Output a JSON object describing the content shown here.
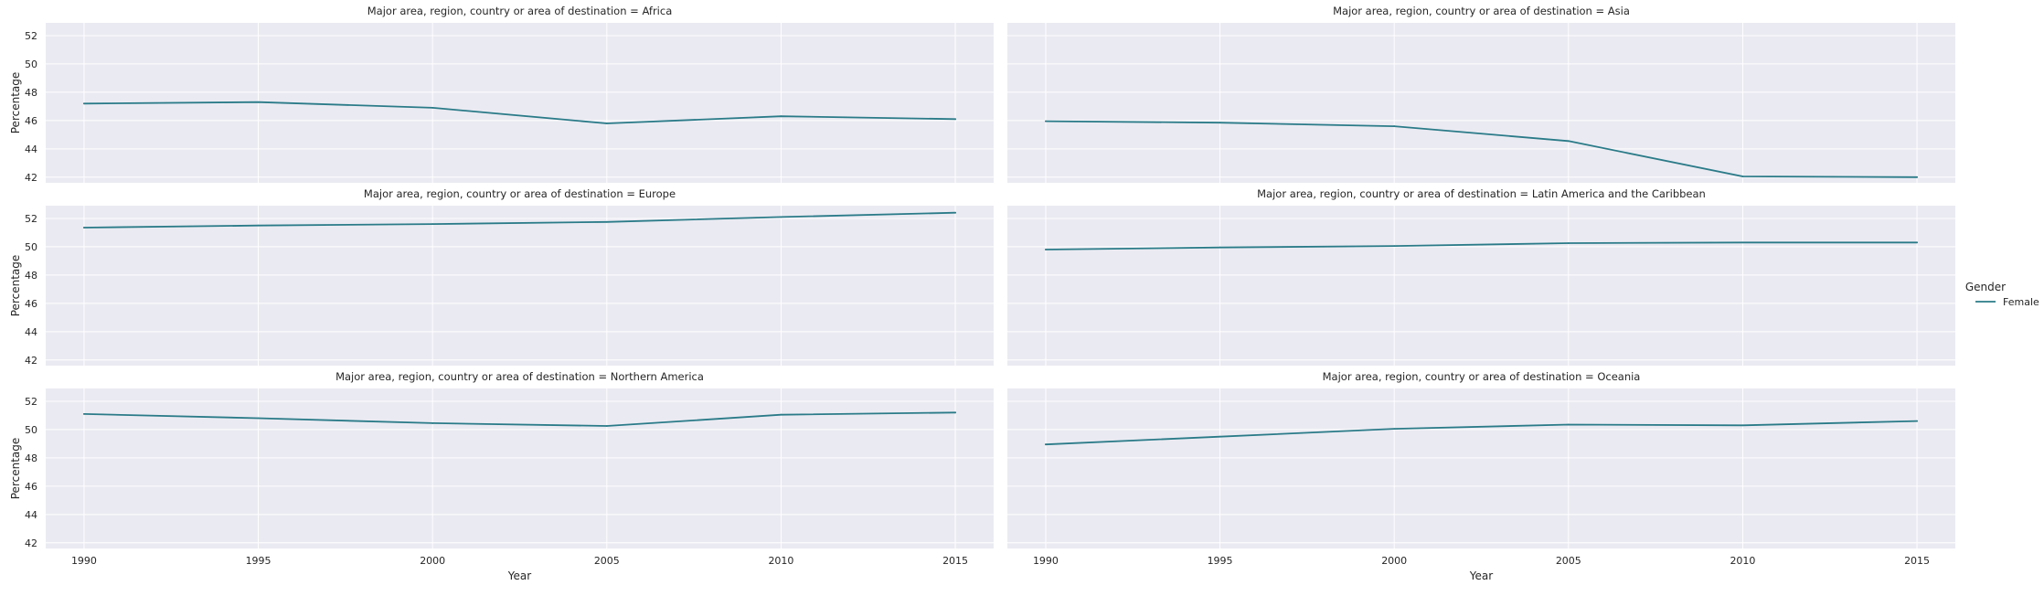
{
  "chart_data": {
    "type": "line",
    "layout": "facet-grid-3x2",
    "xlabel": "Year",
    "ylabel": "Percentage",
    "x_ticks": [
      1990,
      1995,
      2000,
      2005,
      2010,
      2015
    ],
    "xlim": [
      1988.9,
      2016.1
    ],
    "y_ticks": [
      42,
      44,
      46,
      48,
      50,
      52
    ],
    "ylim": [
      41.6,
      52.9
    ],
    "grid": true,
    "legend": {
      "title": "Gender",
      "placement": "right",
      "entries": [
        {
          "name": "Female",
          "color": "#2a7b88"
        }
      ]
    },
    "facet_prefix": "Major area, region, country or area of destination = ",
    "panels": [
      {
        "region": "Africa",
        "series": [
          {
            "name": "Female",
            "x": [
              1990,
              1995,
              2000,
              2005,
              2010,
              2015
            ],
            "values": [
              47.2,
              47.3,
              46.9,
              45.8,
              46.3,
              46.1
            ]
          }
        ]
      },
      {
        "region": "Asia",
        "series": [
          {
            "name": "Female",
            "x": [
              1990,
              1995,
              2000,
              2005,
              2010,
              2015
            ],
            "values": [
              45.95,
              45.85,
              45.6,
              44.55,
              42.05,
              42.0
            ]
          }
        ]
      },
      {
        "region": "Europe",
        "series": [
          {
            "name": "Female",
            "x": [
              1990,
              1995,
              2000,
              2005,
              2010,
              2015
            ],
            "values": [
              51.35,
              51.5,
              51.6,
              51.75,
              52.1,
              52.4
            ]
          }
        ]
      },
      {
        "region": "Latin America and the Caribbean",
        "series": [
          {
            "name": "Female",
            "x": [
              1990,
              1995,
              2000,
              2005,
              2010,
              2015
            ],
            "values": [
              49.8,
              49.95,
              50.05,
              50.25,
              50.3,
              50.3
            ]
          }
        ]
      },
      {
        "region": "Northern America",
        "series": [
          {
            "name": "Female",
            "x": [
              1990,
              1995,
              2000,
              2005,
              2010,
              2015
            ],
            "values": [
              51.1,
              50.8,
              50.45,
              50.25,
              51.05,
              51.2
            ]
          }
        ]
      },
      {
        "region": "Oceania",
        "series": [
          {
            "name": "Female",
            "x": [
              1990,
              1995,
              2000,
              2005,
              2010,
              2015
            ],
            "values": [
              48.95,
              49.5,
              50.05,
              50.35,
              50.3,
              50.6
            ]
          }
        ]
      }
    ]
  },
  "colors": {
    "panel_background": "#eaeaf2",
    "grid": "#ffffff",
    "line": "#2a7b88",
    "text": "#262626"
  }
}
